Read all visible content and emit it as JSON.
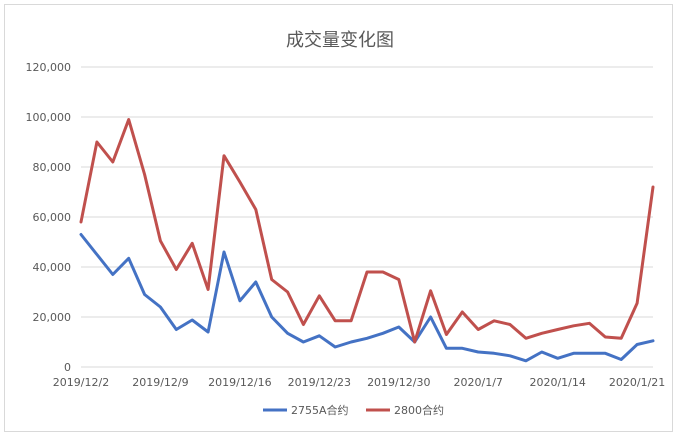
{
  "chart_data": {
    "type": "line",
    "title": "成交量变化图",
    "xlabel": "",
    "ylabel": "",
    "ylim": [
      0,
      120000
    ],
    "yticks": [
      0,
      20000,
      40000,
      60000,
      80000,
      100000,
      120000
    ],
    "ytick_labels": [
      "0",
      "20,000",
      "40,000",
      "60,000",
      "80,000",
      "100,000",
      "120,000"
    ],
    "x_tick_labels": [
      "2019/12/2",
      "2019/12/9",
      "2019/12/16",
      "2019/12/23",
      "2019/12/30",
      "2020/1/7",
      "2020/1/14",
      "2020/1/21"
    ],
    "x_tick_index": [
      0,
      5,
      10,
      15,
      20,
      25,
      30,
      35
    ],
    "grid": true,
    "legend_position": "bottom",
    "series": [
      {
        "name": "2755A合约",
        "color": "#4472c4",
        "values": [
          53000,
          45000,
          37000,
          43500,
          29000,
          24000,
          15000,
          18800,
          14000,
          46000,
          26500,
          34000,
          20000,
          13500,
          10000,
          12500,
          8000,
          10000,
          11500,
          13500,
          16000,
          10000,
          20000,
          7500,
          7500,
          6000,
          5500,
          4500,
          2500,
          6000,
          3500,
          5500,
          5500,
          5500,
          3000,
          9000,
          10500
        ]
      },
      {
        "name": "2800合约",
        "color": "#c0504d",
        "values": [
          58000,
          90000,
          82000,
          99000,
          77000,
          50500,
          39000,
          49500,
          31000,
          84500,
          74000,
          63000,
          35000,
          30000,
          17000,
          28500,
          18500,
          18500,
          38000,
          38000,
          35000,
          10000,
          30500,
          13000,
          22000,
          15000,
          18500,
          17000,
          11500,
          13500,
          15000,
          16500,
          17500,
          12000,
          11500,
          25500,
          72000
        ]
      }
    ]
  }
}
